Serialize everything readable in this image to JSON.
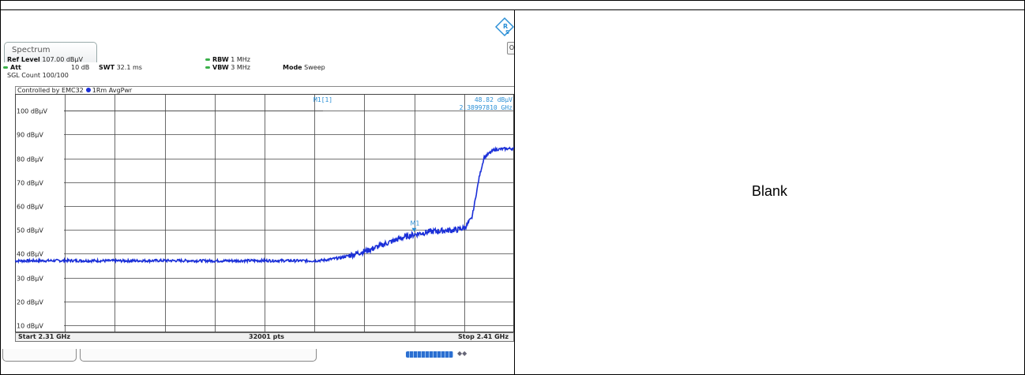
{
  "document": {
    "right_cell_text": "Blank"
  },
  "analyzer": {
    "tab_label": "Spectrum",
    "side_button": "O",
    "settings": {
      "ref_level_label": "Ref Level",
      "ref_level_value": "107.00 dBµV",
      "att_label": "Att",
      "att_value": "10 dB",
      "swt_label": "SWT",
      "swt_value": "32.1 ms",
      "rbw_label": "RBW",
      "rbw_value": "1 MHz",
      "vbw_label": "VBW",
      "vbw_value": "3 MHz",
      "mode_label": "Mode",
      "mode_value": "Sweep",
      "sgl_count": "SGL Count 100/100"
    },
    "control_bar": {
      "controlled_by": "Controlled by EMC32",
      "trace_label": "1Rm AvgPwr"
    },
    "marker": {
      "label": "M1[1]",
      "level": "48.82 dBµV",
      "frequency": "2.38997810 GHz",
      "trace_label": "M1"
    },
    "footer": {
      "start": "Start 2.31 GHz",
      "points": "32001 pts",
      "stop": "Stop 2.41 GHz"
    },
    "colors": {
      "trace": "#1a2fd8",
      "marker_text": "#2a8fd6",
      "grid": "#444444",
      "status_green": "#3bb04a"
    }
  },
  "chart_data": {
    "type": "line",
    "title": "",
    "xlabel": "",
    "ylabel": "",
    "x_unit": "GHz",
    "y_unit": "dBµV",
    "xlim": [
      2.31,
      2.41
    ],
    "ylim": [
      7.0,
      107.0
    ],
    "y_ticks": [
      100,
      90,
      80,
      70,
      60,
      50,
      40,
      30,
      20,
      10
    ],
    "y_tick_labels": [
      "100 dBµV",
      "90 dBµV",
      "80 dBµV",
      "70 dBµV",
      "60 dBµV",
      "50 dBµV",
      "40 dBµV",
      "30 dBµV",
      "20 dBµV",
      "10 dBµV"
    ],
    "x_divisions": 10,
    "grid": true,
    "reference_line_dbuv": 100,
    "series": [
      {
        "name": "1Rm AvgPwr",
        "x": [
          2.31,
          2.32,
          2.33,
          2.34,
          2.35,
          2.36,
          2.37,
          2.372,
          2.375,
          2.378,
          2.381,
          2.384,
          2.387,
          2.39,
          2.393,
          2.396,
          2.3985,
          2.4,
          2.4015,
          2.402,
          2.403,
          2.404,
          2.406,
          2.408,
          2.41
        ],
        "y": [
          37.0,
          37.1,
          37.0,
          37.1,
          37.0,
          37.1,
          37.0,
          37.3,
          38.2,
          39.8,
          41.6,
          44.0,
          46.3,
          48.1,
          49.2,
          49.7,
          50.0,
          50.8,
          54.5,
          60.0,
          72.0,
          80.5,
          83.6,
          84.0,
          84.1
        ]
      }
    ],
    "markers": [
      {
        "name": "M1",
        "x": 2.3899781,
        "y": 48.82
      }
    ]
  }
}
